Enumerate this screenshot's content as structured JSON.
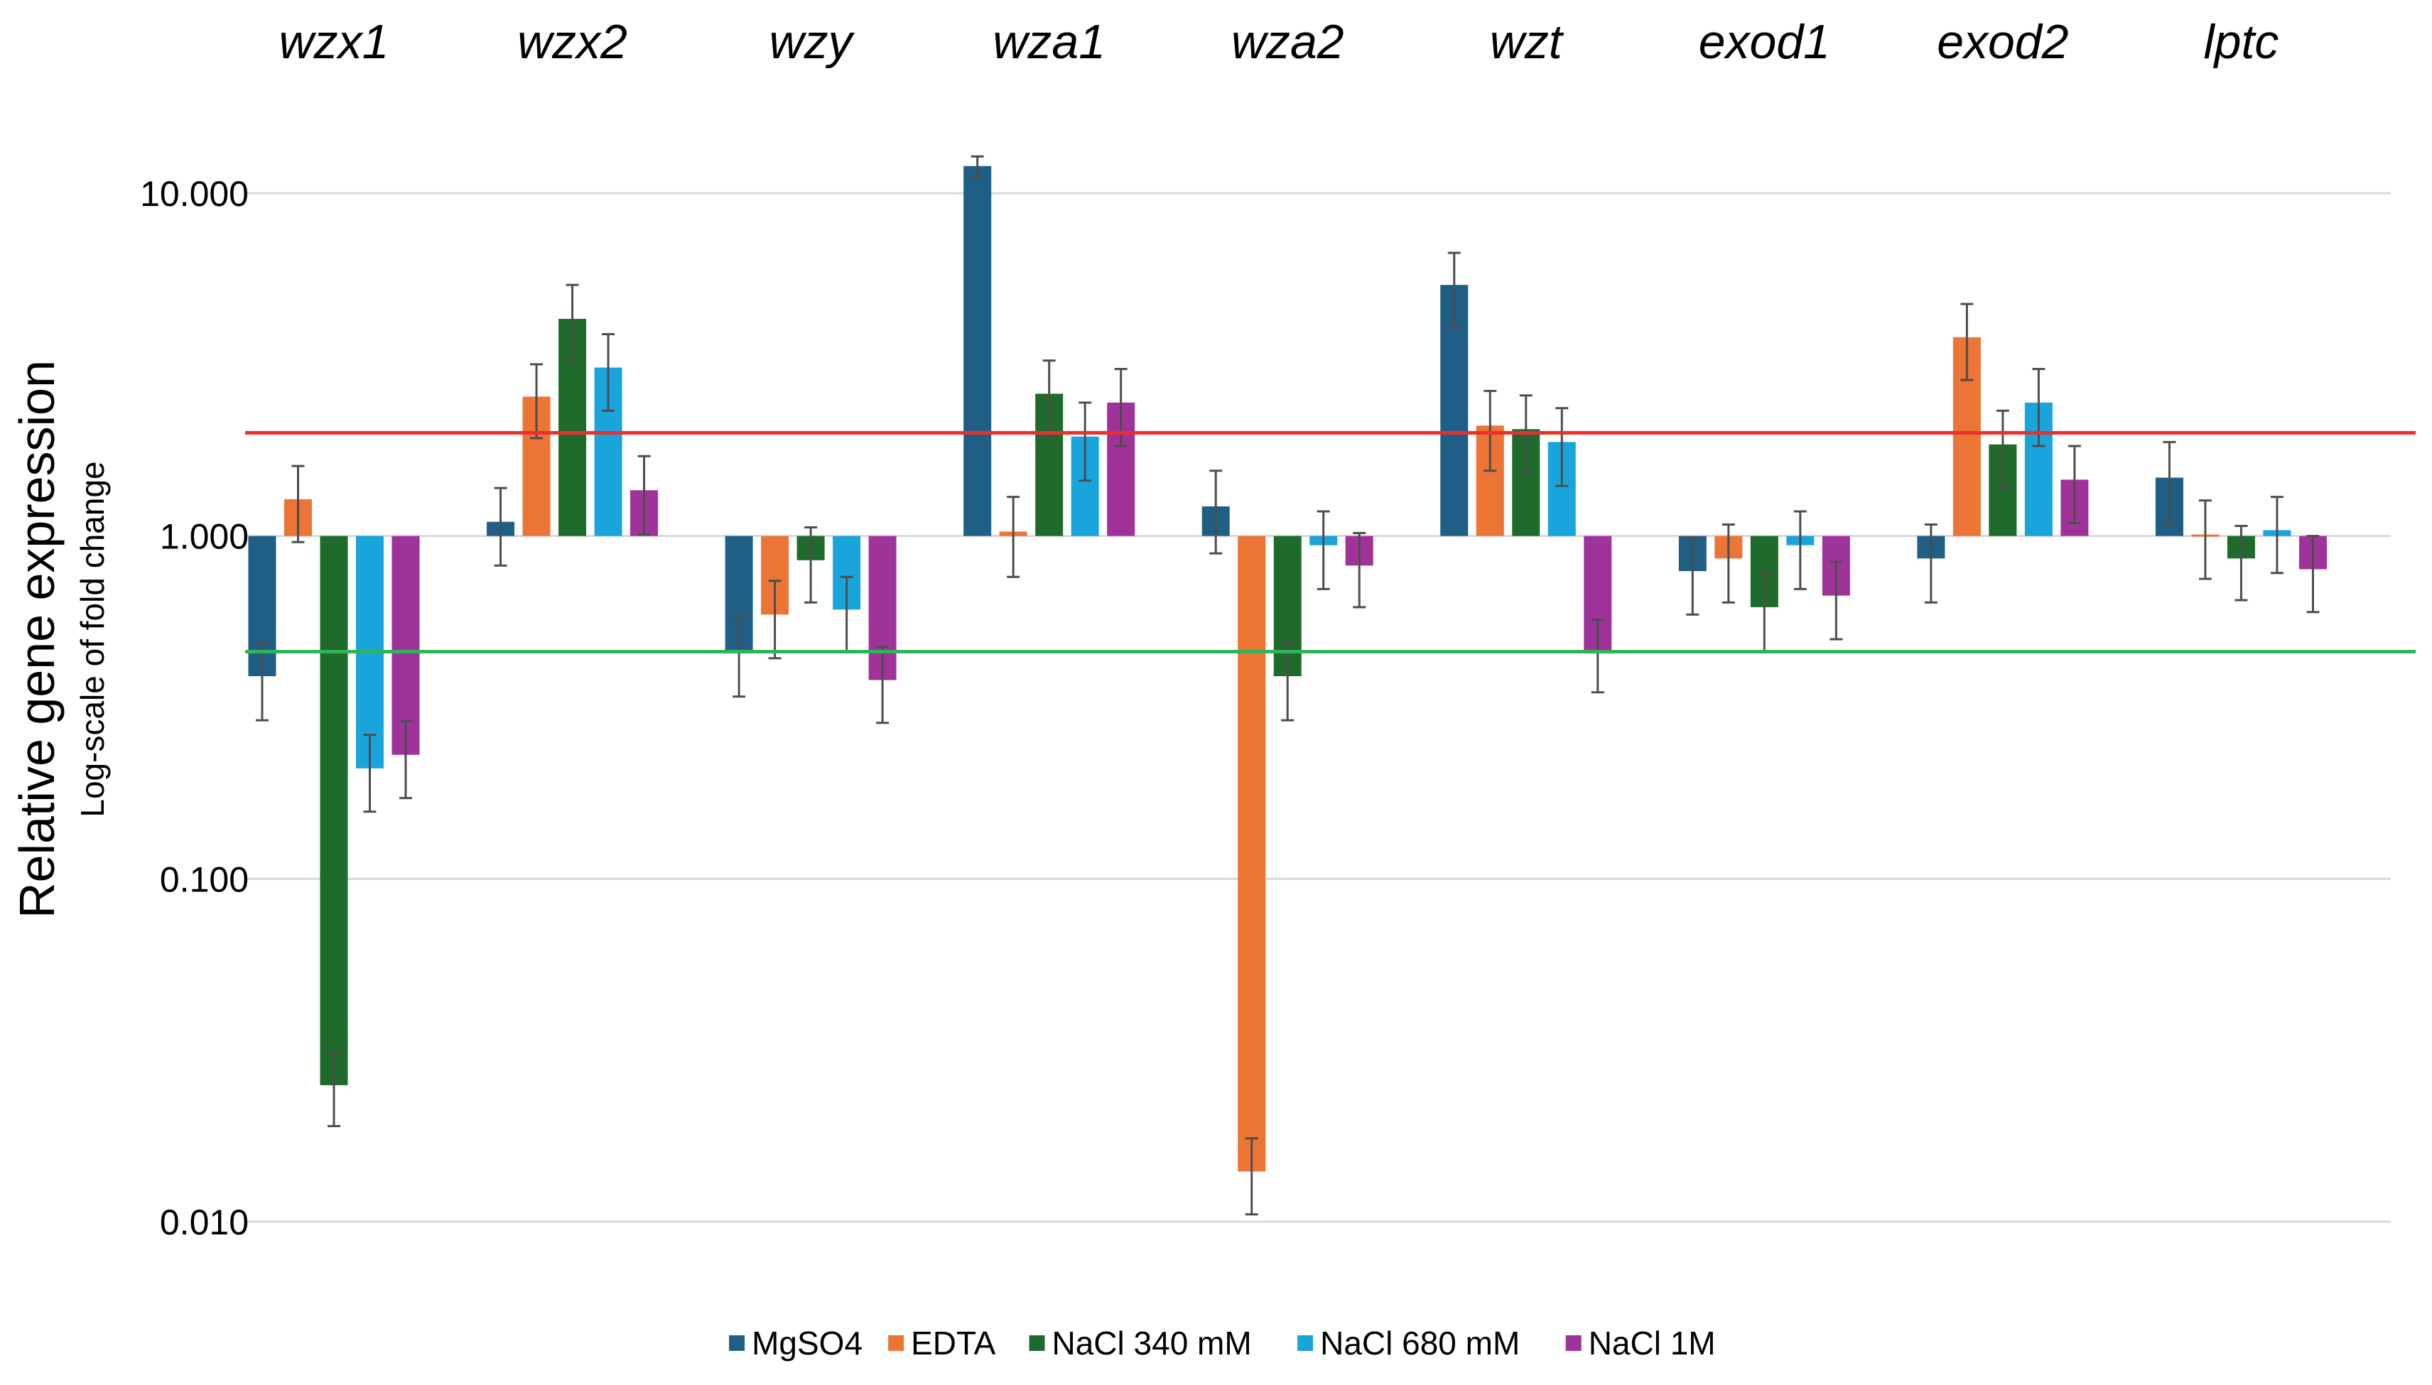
{
  "chart_data": {
    "type": "bar",
    "title": "",
    "xlabel": "",
    "ylabel": "Relative gene expression",
    "ylabel_secondary": "Log-scale of fold change",
    "yscale": "log",
    "ylim": [
      0.01,
      10
    ],
    "yticks": [
      0.01,
      0.1,
      1,
      10
    ],
    "ytick_labels": [
      "0.010",
      "0.100",
      "1.000",
      "10.000"
    ],
    "baseline": 1,
    "grid": true,
    "legend_position": "bottom",
    "categories": [
      "wzx1",
      "wzx2",
      "wzy",
      "wza1",
      "wza2",
      "wzt",
      "exod1",
      "exod2",
      "lptc"
    ],
    "series": [
      {
        "name": "MgSO4",
        "color": "#1f5f85",
        "values": [
          0.39,
          1.1,
          0.46,
          12.0,
          1.22,
          5.4,
          0.79,
          0.86,
          1.48
        ],
        "errors": [
          0.1,
          0.28,
          0.12,
          0.8,
          0.33,
          1.3,
          0.2,
          0.22,
          0.4
        ]
      },
      {
        "name": "EDTA",
        "color": "#ec7434",
        "values": [
          1.28,
          2.55,
          0.59,
          1.03,
          0.014,
          2.1,
          0.86,
          3.8,
          1.01
        ],
        "errors": [
          0.32,
          0.62,
          0.15,
          0.27,
          0.0035,
          0.55,
          0.22,
          0.95,
          0.26
        ]
      },
      {
        "name": "NaCl 340 mM",
        "color": "#1e6b2b",
        "values": [
          0.025,
          4.3,
          0.85,
          2.6,
          0.39,
          2.05,
          0.62,
          1.85,
          0.86
        ],
        "errors": [
          0.006,
          1.1,
          0.21,
          0.65,
          0.1,
          0.52,
          0.16,
          0.47,
          0.21
        ]
      },
      {
        "name": "NaCl 680 mM",
        "color": "#1aa4dc",
        "values": [
          0.21,
          3.1,
          0.61,
          1.95,
          0.94,
          1.88,
          0.94,
          2.45,
          1.04
        ],
        "errors": [
          0.053,
          0.78,
          0.15,
          0.5,
          0.24,
          0.48,
          0.24,
          0.62,
          0.26
        ]
      },
      {
        "name": "NaCl 1M",
        "color": "#a0339a",
        "values": [
          0.23,
          1.36,
          0.38,
          2.45,
          0.82,
          0.46,
          0.67,
          1.46,
          0.8
        ],
        "errors": [
          0.058,
          0.35,
          0.095,
          0.62,
          0.2,
          0.11,
          0.17,
          0.37,
          0.2
        ]
      }
    ],
    "reference_lines": [
      {
        "value": 2,
        "color": "#e8302d"
      },
      {
        "value": 0.46,
        "color": "#2fb45a"
      }
    ]
  }
}
